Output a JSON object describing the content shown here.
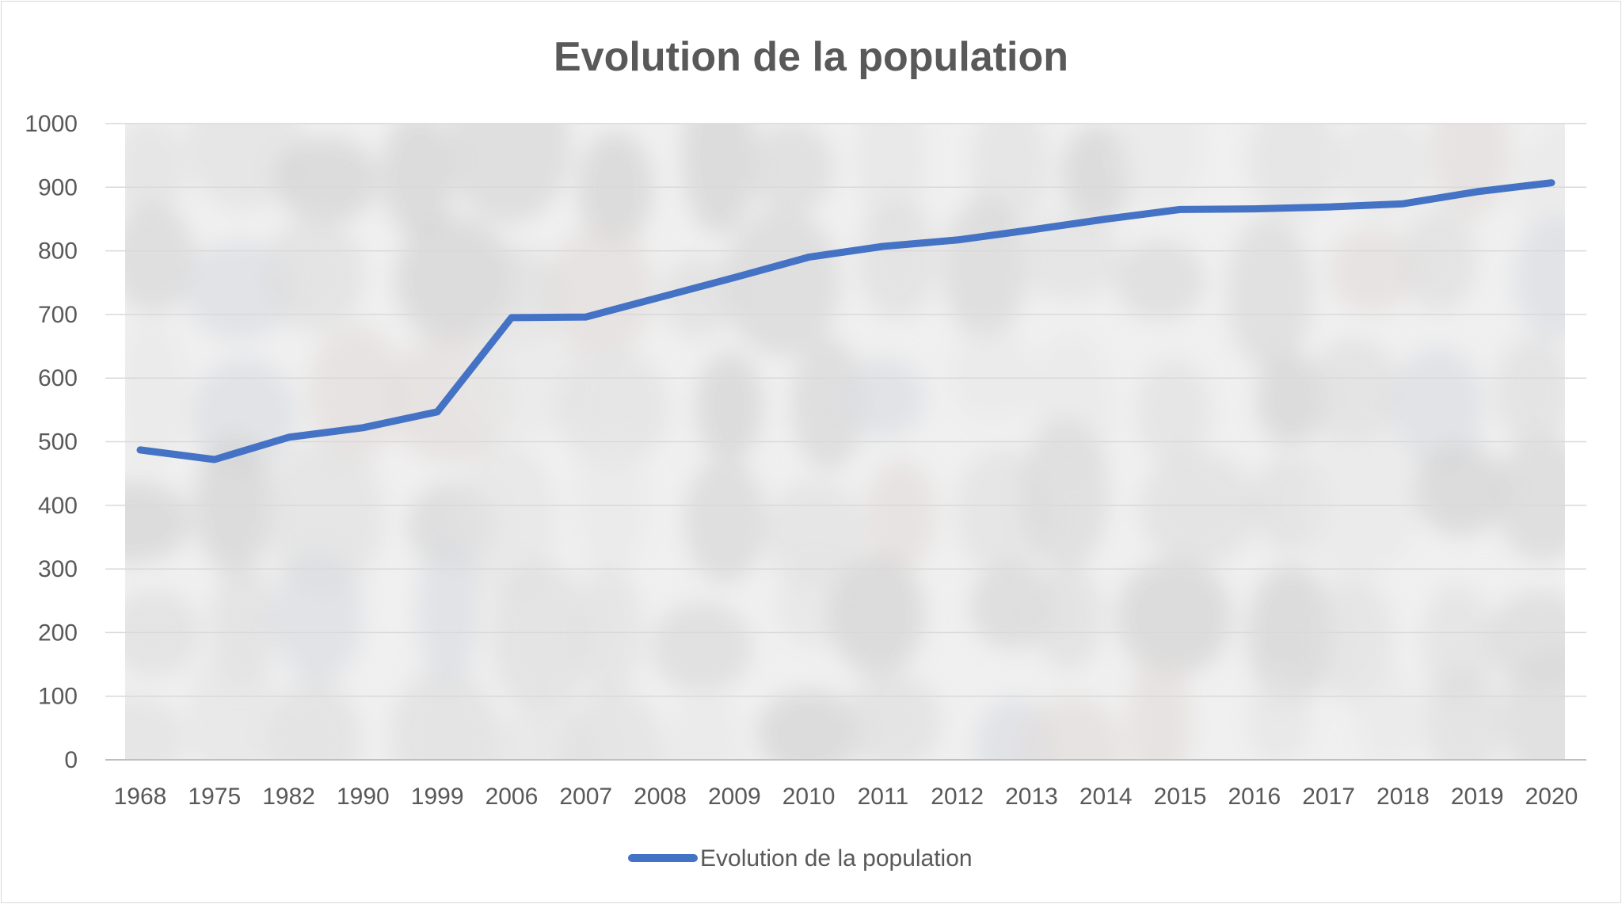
{
  "chart_data": {
    "type": "line",
    "title": "Evolution de la population",
    "categories": [
      "1968",
      "1975",
      "1982",
      "1990",
      "1999",
      "2006",
      "2007",
      "2008",
      "2009",
      "2010",
      "2011",
      "2012",
      "2013",
      "2014",
      "2015",
      "2016",
      "2017",
      "2018",
      "2019",
      "2020"
    ],
    "series": [
      {
        "name": "Evolution de la population",
        "values": [
          487,
          472,
          507,
          522,
          547,
          695,
          696,
          727,
          758,
          790,
          807,
          817,
          833,
          850,
          865,
          866,
          869,
          874,
          893,
          907
        ]
      }
    ],
    "ylim": [
      0,
      1000
    ],
    "yticks": [
      0,
      100,
      200,
      300,
      400,
      500,
      600,
      700,
      800,
      900,
      1000
    ],
    "grid": true,
    "legend_position": "bottom",
    "colors": {
      "line": "#4472c4",
      "grid": "#d9d9d9",
      "text": "#595959",
      "plot_background": "#ededed"
    }
  }
}
